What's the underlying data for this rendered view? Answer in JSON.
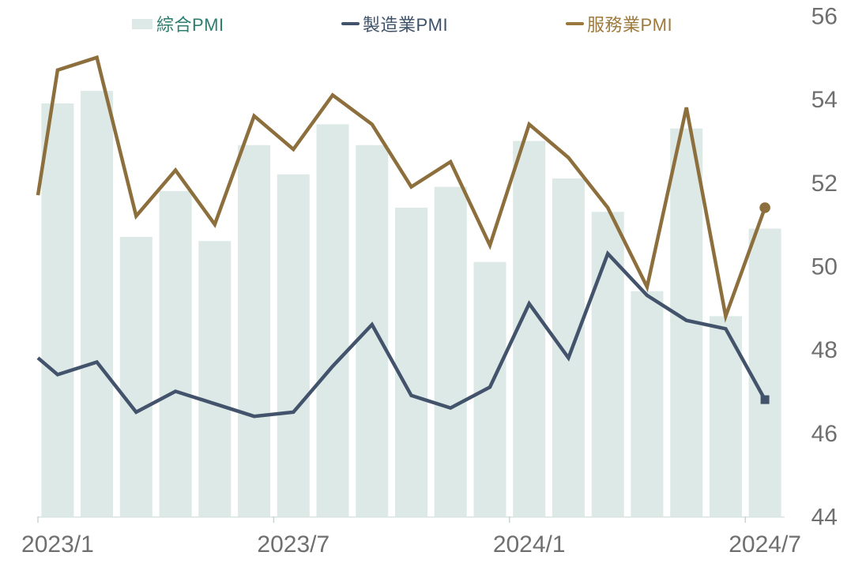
{
  "page": {
    "background": "#ffffff"
  },
  "legend": {
    "items": [
      {
        "id": "composite",
        "label": "綜合PMI",
        "swatch_type": "bar",
        "swatch_color": "#dce9e6",
        "label_color": "#2e7d6f"
      },
      {
        "id": "manufacturing",
        "label": "製造業PMI",
        "swatch_type": "line",
        "swatch_color": "#42536b",
        "label_color": "#3d5169"
      },
      {
        "id": "services",
        "label": "服務業PMI",
        "swatch_type": "line",
        "swatch_color": "#9b783d",
        "label_color": "#9d7a3e"
      }
    ]
  },
  "chart_data": {
    "type": "bar+line",
    "title": "",
    "categories": [
      "2023/1",
      "2023/2",
      "2023/3",
      "2023/4",
      "2023/5",
      "2023/6",
      "2023/7",
      "2023/8",
      "2023/9",
      "2023/10",
      "2023/11",
      "2023/12",
      "2024/1",
      "2024/2",
      "2024/3",
      "2024/4",
      "2024/5",
      "2024/6",
      "2024/7"
    ],
    "x_tick_labels": [
      "2023/1",
      "2023/7",
      "2024/1",
      "2024/7"
    ],
    "x_tick_indices": [
      0,
      6,
      12,
      18
    ],
    "y_axis": {
      "min": 44,
      "max": 56,
      "step": 2,
      "tick_labels": [
        "56",
        "54",
        "52",
        "50",
        "48",
        "46",
        "44"
      ],
      "side": "right",
      "label_color": "#6f6f6f"
    },
    "axis_style": {
      "baseline_color": "#d9e4e1",
      "tick_color": "#c8d4d1",
      "x_label_color": "#6f6f6f"
    },
    "grid": "none",
    "legend_position": "top",
    "series": [
      {
        "id": "composite",
        "name": "綜合PMI",
        "type": "bar",
        "color": "#dce9e6",
        "values": [
          53.9,
          54.2,
          50.7,
          51.8,
          50.6,
          52.9,
          52.2,
          53.4,
          52.9,
          51.4,
          51.9,
          50.1,
          53.0,
          52.1,
          51.3,
          49.4,
          53.3,
          48.8,
          50.9
        ]
      },
      {
        "id": "manufacturing",
        "name": "製造業PMI",
        "type": "line",
        "color": "#42536b",
        "end_marker": "square",
        "edge_start_value": 47.8,
        "values": [
          47.4,
          47.7,
          46.5,
          47.0,
          46.7,
          46.4,
          46.5,
          47.6,
          48.6,
          46.9,
          46.6,
          47.1,
          49.1,
          47.8,
          50.3,
          49.3,
          48.7,
          48.5,
          46.8
        ]
      },
      {
        "id": "services",
        "name": "服務業PMI",
        "type": "line",
        "color": "#8d6f3d",
        "end_marker": "circle",
        "edge_start_value": 51.7,
        "values": [
          54.7,
          55.0,
          51.2,
          52.3,
          51.0,
          53.6,
          52.8,
          54.1,
          53.4,
          51.9,
          52.5,
          50.5,
          53.4,
          52.6,
          51.4,
          49.5,
          53.8,
          48.8,
          51.4
        ]
      }
    ]
  }
}
